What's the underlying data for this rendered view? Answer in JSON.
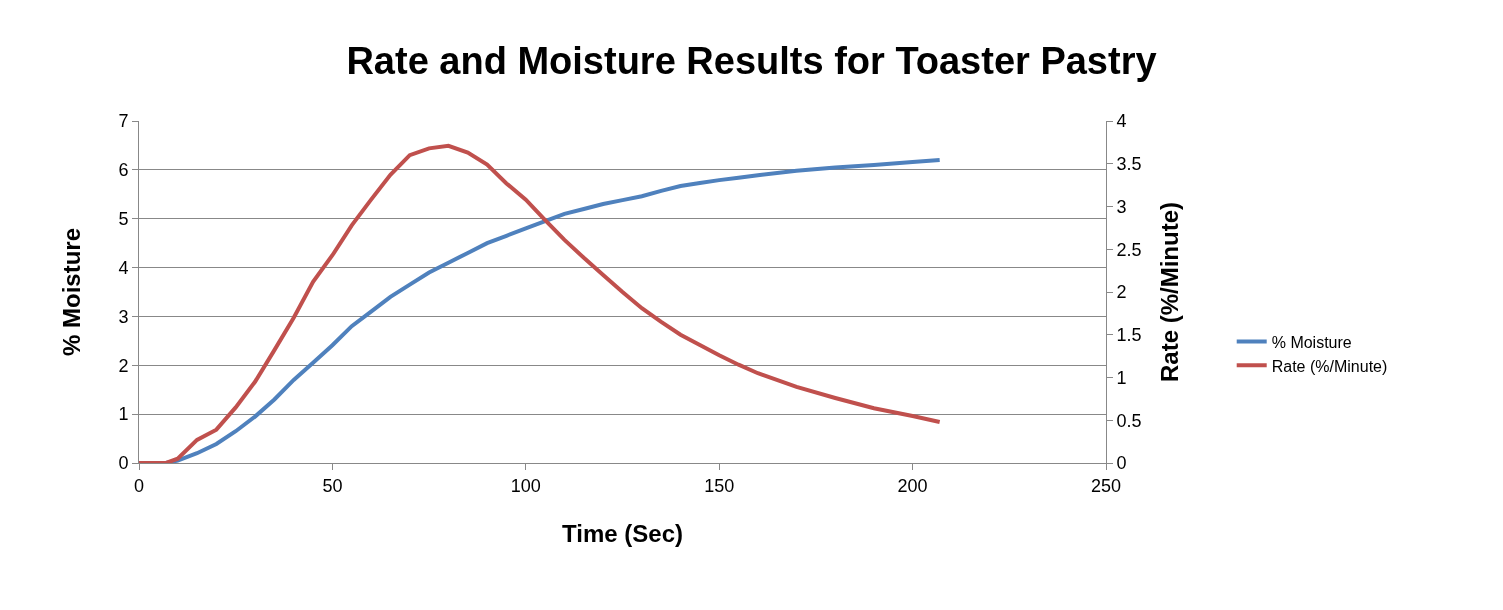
{
  "chart_data": {
    "type": "line",
    "title": "Rate and Moisture Results for Toaster Pastry",
    "xlabel": "Time (Sec)",
    "ylabel": "% Moisture",
    "y2label": "Rate (%/Minute)",
    "xlim": [
      0,
      250
    ],
    "xticks": [
      0,
      50,
      100,
      150,
      200,
      250
    ],
    "ylim": [
      0,
      7
    ],
    "yticks": [
      0,
      1,
      2,
      3,
      4,
      5,
      6,
      7
    ],
    "y2lim": [
      0,
      4
    ],
    "y2ticks": [
      0,
      0.5,
      1,
      1.5,
      2,
      2.5,
      3,
      3.5,
      4
    ],
    "grid": "y",
    "legend": "right",
    "marker": "none",
    "line_style": "solid",
    "x": [
      0,
      7,
      10,
      15,
      20,
      25,
      30,
      35,
      40,
      45,
      50,
      55,
      60,
      65,
      70,
      75,
      80,
      85,
      90,
      95,
      100,
      105,
      110,
      115,
      120,
      125,
      130,
      135,
      140,
      145,
      150,
      155,
      160,
      170,
      180,
      190,
      200,
      207
    ],
    "series": [
      {
        "name": "% Moisture",
        "color": "#4f81bd",
        "values": [
          0,
          0,
          0.05,
          0.2,
          0.39,
          0.65,
          0.95,
          1.3,
          1.7,
          2.05,
          2.41,
          2.8,
          3.1,
          3.4,
          3.65,
          3.9,
          4.1,
          4.3,
          4.5,
          4.65,
          4.8,
          4.95,
          5.1,
          5.2,
          5.3,
          5.38,
          5.46,
          5.57,
          5.67,
          5.73,
          5.79,
          5.84,
          5.89,
          5.98,
          6.05,
          6.1,
          6.16,
          6.2
        ]
      },
      {
        "name": "Rate (%/Minute)",
        "color": "#c0504d",
        "axis": "y2",
        "values": [
          0,
          0,
          0.05,
          0.27,
          0.39,
          0.65,
          0.95,
          1.32,
          1.7,
          2.12,
          2.43,
          2.78,
          3.08,
          3.37,
          3.6,
          3.68,
          3.71,
          3.63,
          3.49,
          3.27,
          3.08,
          2.84,
          2.61,
          2.4,
          2.2,
          2.0,
          1.81,
          1.65,
          1.5,
          1.38,
          1.26,
          1.15,
          1.05,
          0.89,
          0.76,
          0.64,
          0.55,
          0.48
        ]
      }
    ]
  }
}
